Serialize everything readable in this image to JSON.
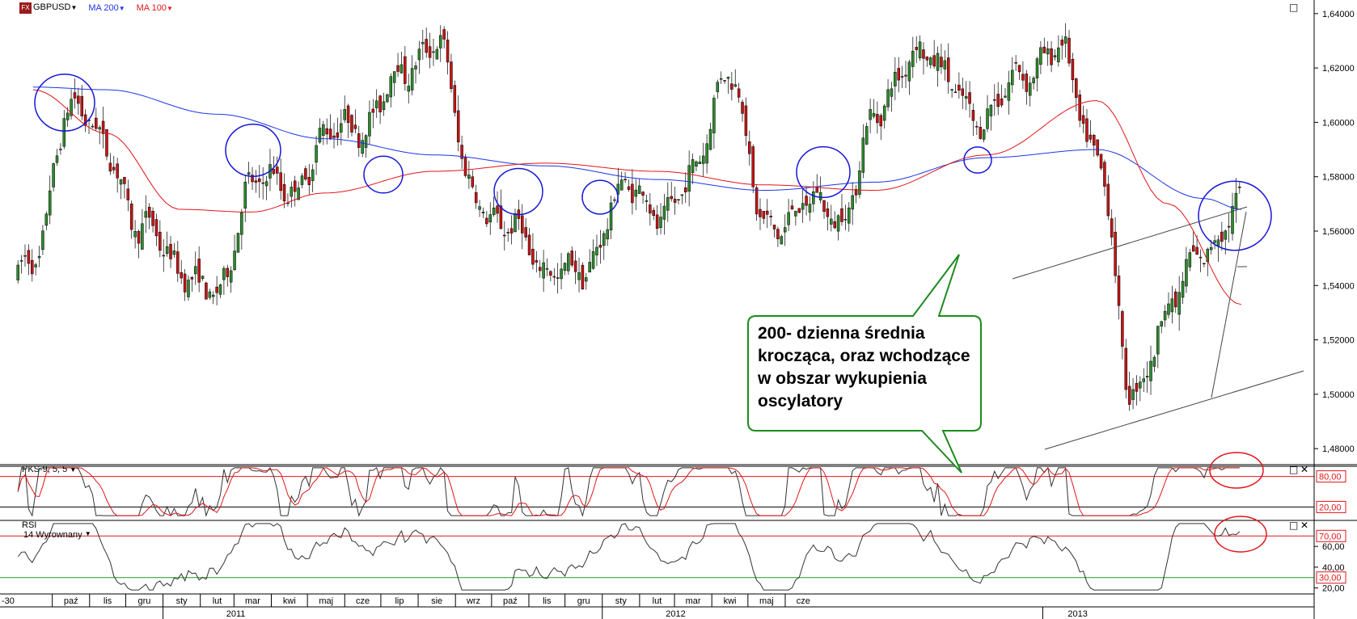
{
  "toolbar": {
    "logo": "FX",
    "symbol": "GBPUSD",
    "ma200_label": "MA 200",
    "ma100_label": "MA 100"
  },
  "colors": {
    "ma200": "#1b36e6",
    "ma100": "#e0161a",
    "annotation_circle": "#1616d8",
    "callout_border": "#1e8a1e",
    "rsi_lower_line": "#1e9a1e",
    "overbought_line": "#e0161a"
  },
  "callout_text": "200- dzienna średnia krocząca, oraz wchodzące w obszar wykupienia oscylatory",
  "panels": {
    "stoch_label": "PKS-9, 5, 5",
    "rsi_label": "RSI",
    "rsi_sublabel": "14 Wyrownany"
  },
  "chart_data": [
    {
      "type": "candlestick",
      "title": "GBPUSD",
      "ylim": [
        1.475,
        1.645
      ],
      "yticks": [
        "1,48000",
        "1,50000",
        "1,52000",
        "1,54000",
        "1,56000",
        "1,58000",
        "1,60000",
        "1,62000",
        "1,64000"
      ],
      "series": [
        {
          "name": "MA 200",
          "x": [
            "2010-09",
            "2010-11",
            "2011-02",
            "2011-05",
            "2011-08",
            "2011-11",
            "2012-02",
            "2012-05",
            "2012-08",
            "2012-11",
            "2013-02",
            "2013-05",
            "2013-06"
          ],
          "values": [
            1.613,
            1.612,
            1.603,
            1.594,
            1.588,
            1.584,
            1.579,
            1.575,
            1.578,
            1.587,
            1.59,
            1.572,
            1.568
          ]
        },
        {
          "name": "MA 100",
          "x": [
            "2010-09",
            "2010-11",
            "2011-01",
            "2011-03",
            "2011-05",
            "2011-08",
            "2011-11",
            "2012-02",
            "2012-05",
            "2012-08",
            "2012-11",
            "2013-02",
            "2013-04",
            "2013-06"
          ],
          "values": [
            1.612,
            1.596,
            1.568,
            1.567,
            1.574,
            1.582,
            1.585,
            1.582,
            1.577,
            1.575,
            1.588,
            1.608,
            1.57,
            1.533
          ]
        }
      ],
      "close": {
        "x": [
          "2010-09",
          "2010-10",
          "2010-11",
          "2010-12",
          "2011-01",
          "2011-02",
          "2011-03",
          "2011-04",
          "2011-05",
          "2011-06",
          "2011-07",
          "2011-08",
          "2011-09",
          "2011-10",
          "2011-11",
          "2011-12",
          "2012-01",
          "2012-02",
          "2012-03",
          "2012-04",
          "2012-05",
          "2012-06",
          "2012-07",
          "2012-08",
          "2012-09",
          "2012-10",
          "2012-11",
          "2012-12",
          "2013-01",
          "2013-02",
          "2013-03",
          "2013-04",
          "2013-05",
          "2013-06"
        ],
        "values": [
          1.545,
          1.608,
          1.59,
          1.56,
          1.548,
          1.534,
          1.58,
          1.574,
          1.594,
          1.6,
          1.615,
          1.632,
          1.575,
          1.56,
          1.548,
          1.542,
          1.576,
          1.567,
          1.578,
          1.622,
          1.56,
          1.57,
          1.565,
          1.6,
          1.628,
          1.615,
          1.6,
          1.62,
          1.625,
          1.59,
          1.5,
          1.53,
          1.555,
          1.567
        ]
      },
      "annotations": [
        "blue circles marking price touches of the MA 200",
        "ascending channel lines",
        "callout box"
      ]
    },
    {
      "type": "line",
      "title": "PKS-9, 5, 5",
      "ylim": [
        0,
        100
      ],
      "levels": [
        {
          "value": 80,
          "label": "80,00"
        },
        {
          "value": 20,
          "label": "20,00"
        }
      ],
      "series": [
        {
          "name": "PKS-9, 5, 5"
        },
        {
          "name": "signal"
        }
      ]
    },
    {
      "type": "line",
      "title": "RSI",
      "ylim": [
        15,
        85
      ],
      "yticks": [
        "20,00",
        "40,00",
        "60,00"
      ],
      "levels": [
        {
          "value": 70,
          "label": "70,00"
        },
        {
          "value": 30,
          "label": "30,00"
        }
      ],
      "series": [
        {
          "name": "14 Wyrownany"
        }
      ]
    }
  ],
  "xaxis": {
    "months": [
      {
        "label": "-30"
      },
      {
        "label": "paź"
      },
      {
        "label": "lis"
      },
      {
        "label": "gru"
      },
      {
        "label": "sty"
      },
      {
        "label": "lut"
      },
      {
        "label": "mar"
      },
      {
        "label": "kwi"
      },
      {
        "label": "maj"
      },
      {
        "label": "cze"
      },
      {
        "label": "lip"
      },
      {
        "label": "sie"
      },
      {
        "label": "wrz"
      },
      {
        "label": "paź"
      },
      {
        "label": "lis"
      },
      {
        "label": "gru"
      },
      {
        "label": "sty"
      },
      {
        "label": "lut"
      },
      {
        "label": "mar"
      },
      {
        "label": "kwi"
      },
      {
        "label": "maj"
      },
      {
        "label": "cze"
      }
    ],
    "years": [
      "2011",
      "2012",
      "2013"
    ]
  }
}
